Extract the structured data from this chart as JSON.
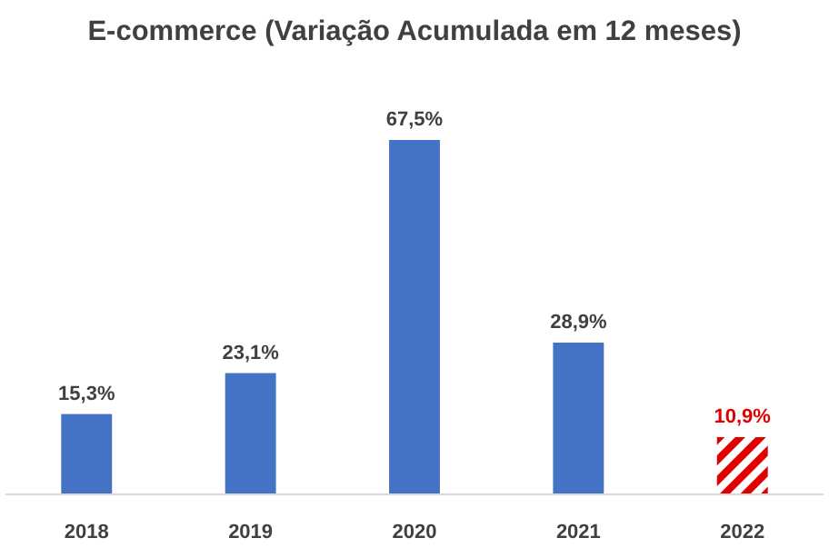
{
  "chart_data": {
    "type": "bar",
    "title": "E-commerce (Variação Acumulada em 12 meses)",
    "categories": [
      "2018",
      "2019",
      "2020",
      "2021",
      "2022"
    ],
    "values": [
      15.3,
      23.1,
      67.5,
      28.9,
      10.9
    ],
    "value_labels": [
      "15,3%",
      "23,1%",
      "67,5%",
      "28,9%",
      "10,9%"
    ],
    "color": "#4472c4",
    "colors": [
      "#4472c4",
      "#4472c4",
      "#4472c4",
      "#4472c4",
      "#e00000"
    ]
  }
}
